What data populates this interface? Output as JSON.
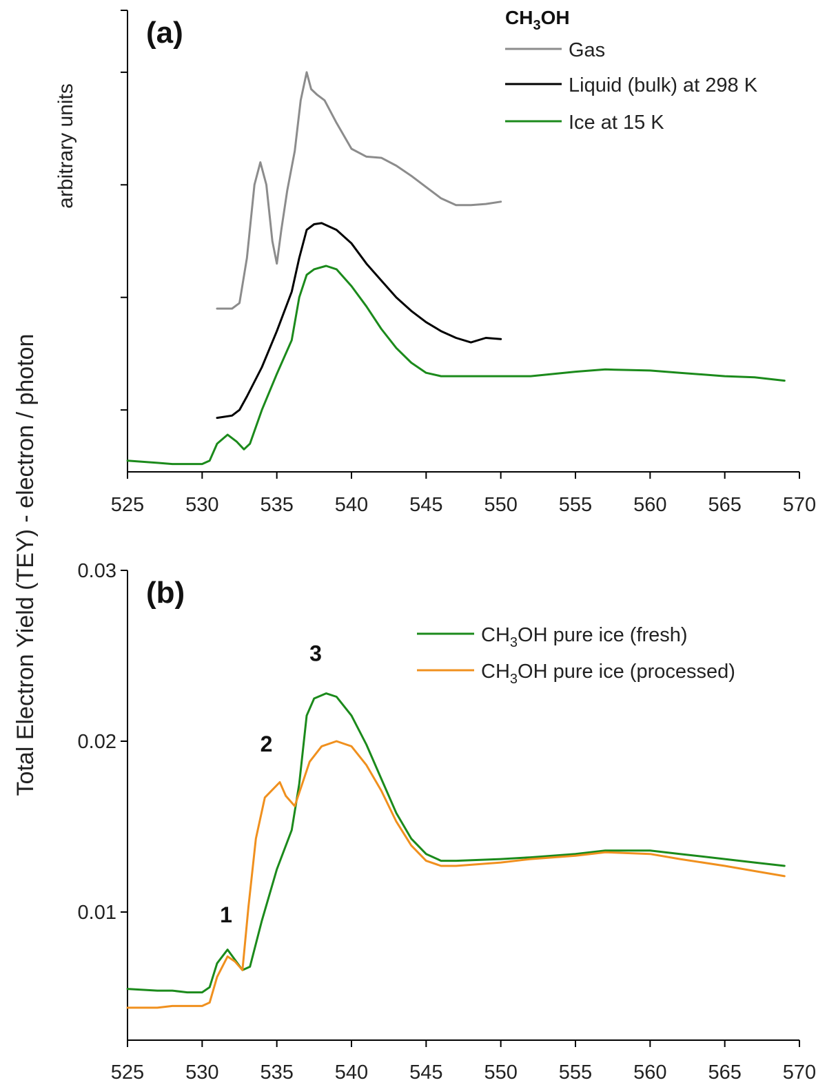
{
  "figure": {
    "ylabel": "Total Electron Yield (TEY) - electron / photon"
  },
  "chart_data": [
    {
      "id": "a",
      "type": "line",
      "panel_label": "(a)",
      "title": "",
      "legend_title": "CH3OH",
      "legend_title_parts": {
        "pre": "CH",
        "sub": "3",
        "post": "OH"
      },
      "xlabel": "",
      "ylabel": "arbitrary units",
      "xlim": [
        525,
        570
      ],
      "ylim": [
        -0.55,
        3.55
      ],
      "x_ticks": [
        525,
        530,
        535,
        540,
        545,
        550,
        555,
        560,
        565,
        570
      ],
      "y_ticks_unlabeled": [
        0,
        1,
        2,
        3
      ],
      "grid": false,
      "legend_position": "top-right",
      "series": [
        {
          "name": "Gas",
          "color": "#8c8c8c",
          "x": [
            531,
            532,
            532.5,
            533,
            533.5,
            533.9,
            534.3,
            534.7,
            535,
            535.3,
            535.7,
            536.2,
            536.6,
            537,
            537.3,
            537.7,
            538.2,
            539,
            540,
            541,
            542,
            543,
            544,
            545,
            546,
            547,
            548,
            549,
            550
          ],
          "y": [
            0.9,
            0.9,
            0.95,
            1.35,
            2.0,
            2.2,
            2.0,
            1.5,
            1.3,
            1.6,
            1.95,
            2.3,
            2.75,
            3.0,
            2.85,
            2.8,
            2.75,
            2.55,
            2.32,
            2.25,
            2.24,
            2.17,
            2.08,
            1.98,
            1.88,
            1.82,
            1.82,
            1.83,
            1.85
          ]
        },
        {
          "name": "Liquid (bulk) at 298 K",
          "color": "#000000",
          "x": [
            531,
            532,
            532.5,
            533,
            534,
            535,
            536,
            536.5,
            537,
            537.5,
            538,
            539,
            540,
            541,
            542,
            543,
            544,
            545,
            546,
            547,
            548,
            549,
            550
          ],
          "y": [
            -0.07,
            -0.05,
            0.0,
            0.12,
            0.38,
            0.7,
            1.05,
            1.35,
            1.6,
            1.65,
            1.66,
            1.6,
            1.48,
            1.3,
            1.15,
            1.0,
            0.88,
            0.78,
            0.7,
            0.64,
            0.6,
            0.64,
            0.63
          ]
        },
        {
          "name": "Ice at 15 K",
          "color": "#1b8a1b",
          "x": [
            525,
            527,
            528,
            530,
            530.5,
            531,
            531.7,
            532.3,
            532.8,
            533.2,
            534,
            535,
            536,
            536.5,
            537,
            537.5,
            538.3,
            539,
            540,
            541,
            542,
            543,
            544,
            545,
            546,
            547,
            550,
            552,
            555,
            557,
            560,
            562,
            565,
            567,
            569
          ],
          "y": [
            -0.45,
            -0.47,
            -0.48,
            -0.48,
            -0.45,
            -0.3,
            -0.22,
            -0.28,
            -0.35,
            -0.3,
            0.0,
            0.32,
            0.62,
            1.0,
            1.2,
            1.25,
            1.28,
            1.25,
            1.1,
            0.92,
            0.72,
            0.55,
            0.42,
            0.33,
            0.3,
            0.3,
            0.3,
            0.3,
            0.34,
            0.36,
            0.35,
            0.33,
            0.3,
            0.29,
            0.26
          ]
        }
      ]
    },
    {
      "id": "b",
      "type": "line",
      "panel_label": "(b)",
      "title": "",
      "xlabel": "",
      "ylabel": "",
      "xlim": [
        525,
        570
      ],
      "ylim": [
        0.0025,
        0.03
      ],
      "x_ticks": [
        525,
        530,
        535,
        540,
        545,
        550,
        555,
        560,
        565,
        570
      ],
      "y_ticks": [
        0.01,
        0.02,
        0.03
      ],
      "y_tick_labels": [
        "0.01",
        "0.02",
        "0.03"
      ],
      "grid": false,
      "legend_position": "top-right",
      "annotations": [
        {
          "text": "1",
          "x": 531.6,
          "y": 0.0094
        },
        {
          "text": "2",
          "x": 534.3,
          "y": 0.0194
        },
        {
          "text": "3",
          "x": 537.6,
          "y": 0.0247
        }
      ],
      "series": [
        {
          "name": "CH3OH pure ice (fresh)",
          "label_parts": {
            "pre": "CH",
            "sub": "3",
            "post": "OH pure ice (fresh)"
          },
          "color": "#1b8a1b",
          "x": [
            525,
            527,
            528,
            529,
            530,
            530.5,
            531,
            531.7,
            532.2,
            532.7,
            533.2,
            534,
            535,
            536,
            536.5,
            537,
            537.5,
            538.3,
            539,
            540,
            541,
            542,
            543,
            544,
            545,
            546,
            547,
            550,
            552,
            555,
            557,
            560,
            562,
            565,
            567,
            569
          ],
          "y": [
            0.0055,
            0.0054,
            0.0054,
            0.0053,
            0.0053,
            0.0056,
            0.007,
            0.0078,
            0.0072,
            0.0066,
            0.0068,
            0.0095,
            0.0125,
            0.0148,
            0.0175,
            0.0215,
            0.0225,
            0.0228,
            0.0226,
            0.0215,
            0.0198,
            0.0178,
            0.0158,
            0.0143,
            0.0134,
            0.013,
            0.013,
            0.0131,
            0.0132,
            0.0134,
            0.0136,
            0.0136,
            0.0134,
            0.0131,
            0.0129,
            0.0127
          ]
        },
        {
          "name": "CH3OH pure ice (processed)",
          "label_parts": {
            "pre": "CH",
            "sub": "3",
            "post": "OH pure ice (processed)"
          },
          "color": "#f0901e",
          "x": [
            525,
            527,
            528,
            530,
            530.5,
            531,
            531.7,
            532.2,
            532.7,
            533.1,
            533.6,
            534.2,
            535.2,
            535.6,
            536.2,
            536.7,
            537.2,
            538,
            539,
            540,
            541,
            542,
            543,
            544,
            545,
            546,
            547,
            550,
            552,
            555,
            557,
            560,
            562,
            565,
            567,
            569
          ],
          "y": [
            0.0044,
            0.0044,
            0.0045,
            0.0045,
            0.0047,
            0.0062,
            0.0074,
            0.0071,
            0.0066,
            0.0103,
            0.0143,
            0.0167,
            0.0176,
            0.0168,
            0.0162,
            0.0175,
            0.0188,
            0.0197,
            0.02,
            0.0197,
            0.0186,
            0.0171,
            0.0153,
            0.0139,
            0.013,
            0.0127,
            0.0127,
            0.0129,
            0.0131,
            0.0133,
            0.0135,
            0.0134,
            0.0131,
            0.0127,
            0.0124,
            0.0121
          ]
        }
      ]
    }
  ]
}
